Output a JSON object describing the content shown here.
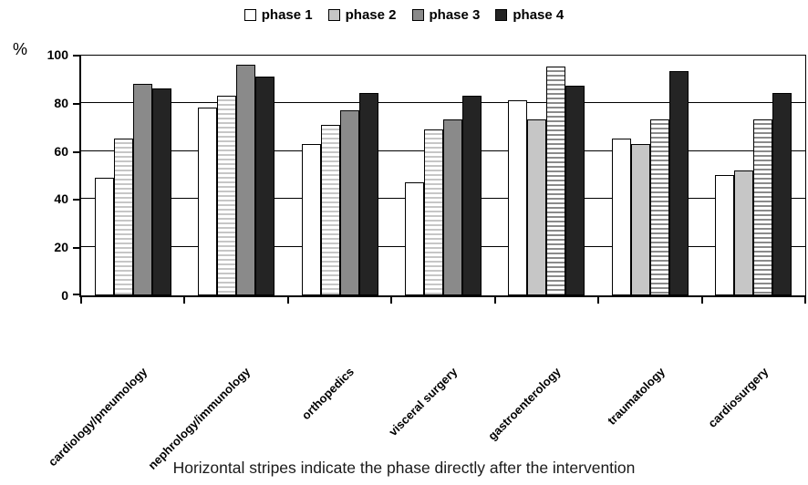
{
  "caption": "Horizontal stripes indicate the phase directly after the intervention",
  "y_axis": {
    "unit_label": "%",
    "ticks": [
      0,
      20,
      40,
      60,
      80,
      100
    ]
  },
  "legend": {
    "position": "top"
  },
  "chart_data": {
    "type": "bar",
    "title": "",
    "xlabel": "",
    "ylabel": "%",
    "ylim": [
      0,
      100
    ],
    "grid": true,
    "legend_position": "top",
    "categories": [
      "cardiology/pneumology",
      "nephrology/immunology",
      "orthopedics",
      "visceral surgery",
      "gastroenterology",
      "traumatology",
      "cardiosurgery"
    ],
    "series": [
      {
        "name": "phase 1",
        "color": "#ffffff",
        "values": [
          49,
          78,
          63,
          47,
          81,
          65,
          50
        ]
      },
      {
        "name": "phase 2",
        "color": "#c6c6c6",
        "values": [
          65,
          83,
          71,
          69,
          73,
          63,
          52
        ]
      },
      {
        "name": "phase 3",
        "color": "#8a8a8a",
        "values": [
          88,
          96,
          77,
          73,
          95,
          73,
          73
        ]
      },
      {
        "name": "phase 4",
        "color": "#242424",
        "values": [
          86,
          91,
          84,
          83,
          87,
          93,
          84
        ]
      }
    ],
    "striped_series_index_by_category": [
      1,
      1,
      1,
      1,
      2,
      2,
      2
    ],
    "note": "Horizontal stripes indicate the phase directly after the intervention"
  }
}
